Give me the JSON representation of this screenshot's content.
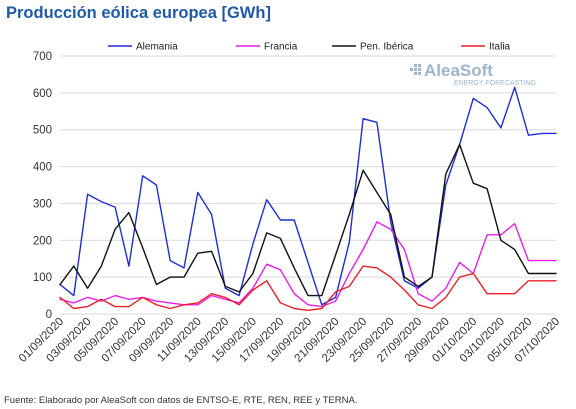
{
  "chart_data": {
    "type": "line",
    "title": "Producción eólica europea [GWh]",
    "xlabel": "",
    "ylabel": "",
    "ylim": [
      0,
      700
    ],
    "yticks": [
      0,
      100,
      200,
      300,
      400,
      500,
      600,
      700
    ],
    "grid": true,
    "legend_position": "top",
    "x": [
      "01/09/2020",
      "02/09/2020",
      "03/09/2020",
      "04/09/2020",
      "05/09/2020",
      "06/09/2020",
      "07/09/2020",
      "08/09/2020",
      "09/09/2020",
      "10/09/2020",
      "11/09/2020",
      "12/09/2020",
      "13/09/2020",
      "14/09/2020",
      "15/09/2020",
      "16/09/2020",
      "17/09/2020",
      "18/09/2020",
      "19/09/2020",
      "20/09/2020",
      "21/09/2020",
      "22/09/2020",
      "23/09/2020",
      "24/09/2020",
      "25/09/2020",
      "26/09/2020",
      "27/09/2020",
      "28/09/2020",
      "29/09/2020",
      "30/09/2020",
      "01/10/2020",
      "02/10/2020",
      "03/10/2020",
      "04/10/2020",
      "05/10/2020",
      "06/10/2020",
      "07/10/2020"
    ],
    "xtick_labels": [
      "01/09/2020",
      "03/09/2020",
      "05/09/2020",
      "07/09/2020",
      "09/09/2020",
      "11/09/2020",
      "13/09/2020",
      "15/09/2020",
      "17/09/2020",
      "19/09/2020",
      "21/09/2020",
      "23/09/2020",
      "25/09/2020",
      "27/09/2020",
      "29/09/2020",
      "01/10/2020",
      "03/10/2020",
      "05/10/2020",
      "07/10/2020"
    ],
    "series": [
      {
        "name": "Alemania",
        "color": "#1f2ed1",
        "values": [
          80,
          50,
          325,
          305,
          290,
          130,
          375,
          350,
          145,
          125,
          330,
          270,
          70,
          50,
          190,
          310,
          255,
          255,
          140,
          25,
          45,
          195,
          530,
          520,
          250,
          90,
          70,
          100,
          350,
          460,
          585,
          560,
          505,
          615,
          485,
          490,
          490
        ]
      },
      {
        "name": "Francia",
        "color": "#e620e6",
        "values": [
          40,
          30,
          45,
          35,
          50,
          40,
          45,
          35,
          30,
          25,
          25,
          50,
          40,
          30,
          70,
          135,
          120,
          55,
          25,
          20,
          35,
          110,
          175,
          250,
          230,
          175,
          55,
          35,
          70,
          140,
          110,
          215,
          215,
          245,
          145,
          145,
          145
        ]
      },
      {
        "name": "Pen. Ibérica",
        "color": "#111111",
        "values": [
          80,
          130,
          70,
          130,
          230,
          275,
          180,
          80,
          100,
          100,
          165,
          170,
          75,
          60,
          110,
          220,
          205,
          125,
          50,
          50,
          160,
          270,
          390,
          330,
          270,
          100,
          75,
          100,
          380,
          460,
          355,
          340,
          200,
          175,
          110,
          110,
          110
        ]
      },
      {
        "name": "Italia",
        "color": "#e8202a",
        "values": [
          45,
          15,
          20,
          40,
          20,
          20,
          45,
          25,
          15,
          25,
          30,
          55,
          45,
          25,
          65,
          90,
          30,
          15,
          10,
          15,
          60,
          75,
          130,
          125,
          100,
          65,
          25,
          15,
          45,
          100,
          110,
          55,
          55,
          55,
          90,
          90,
          90
        ]
      }
    ]
  },
  "logo": {
    "name": "AleaSoft",
    "tagline": "ENERGY FORECASTING"
  },
  "source": "Fuente: Elaborado por AleaSoft con datos de ENTSO-E, RTE, REN, REE y TERNA."
}
